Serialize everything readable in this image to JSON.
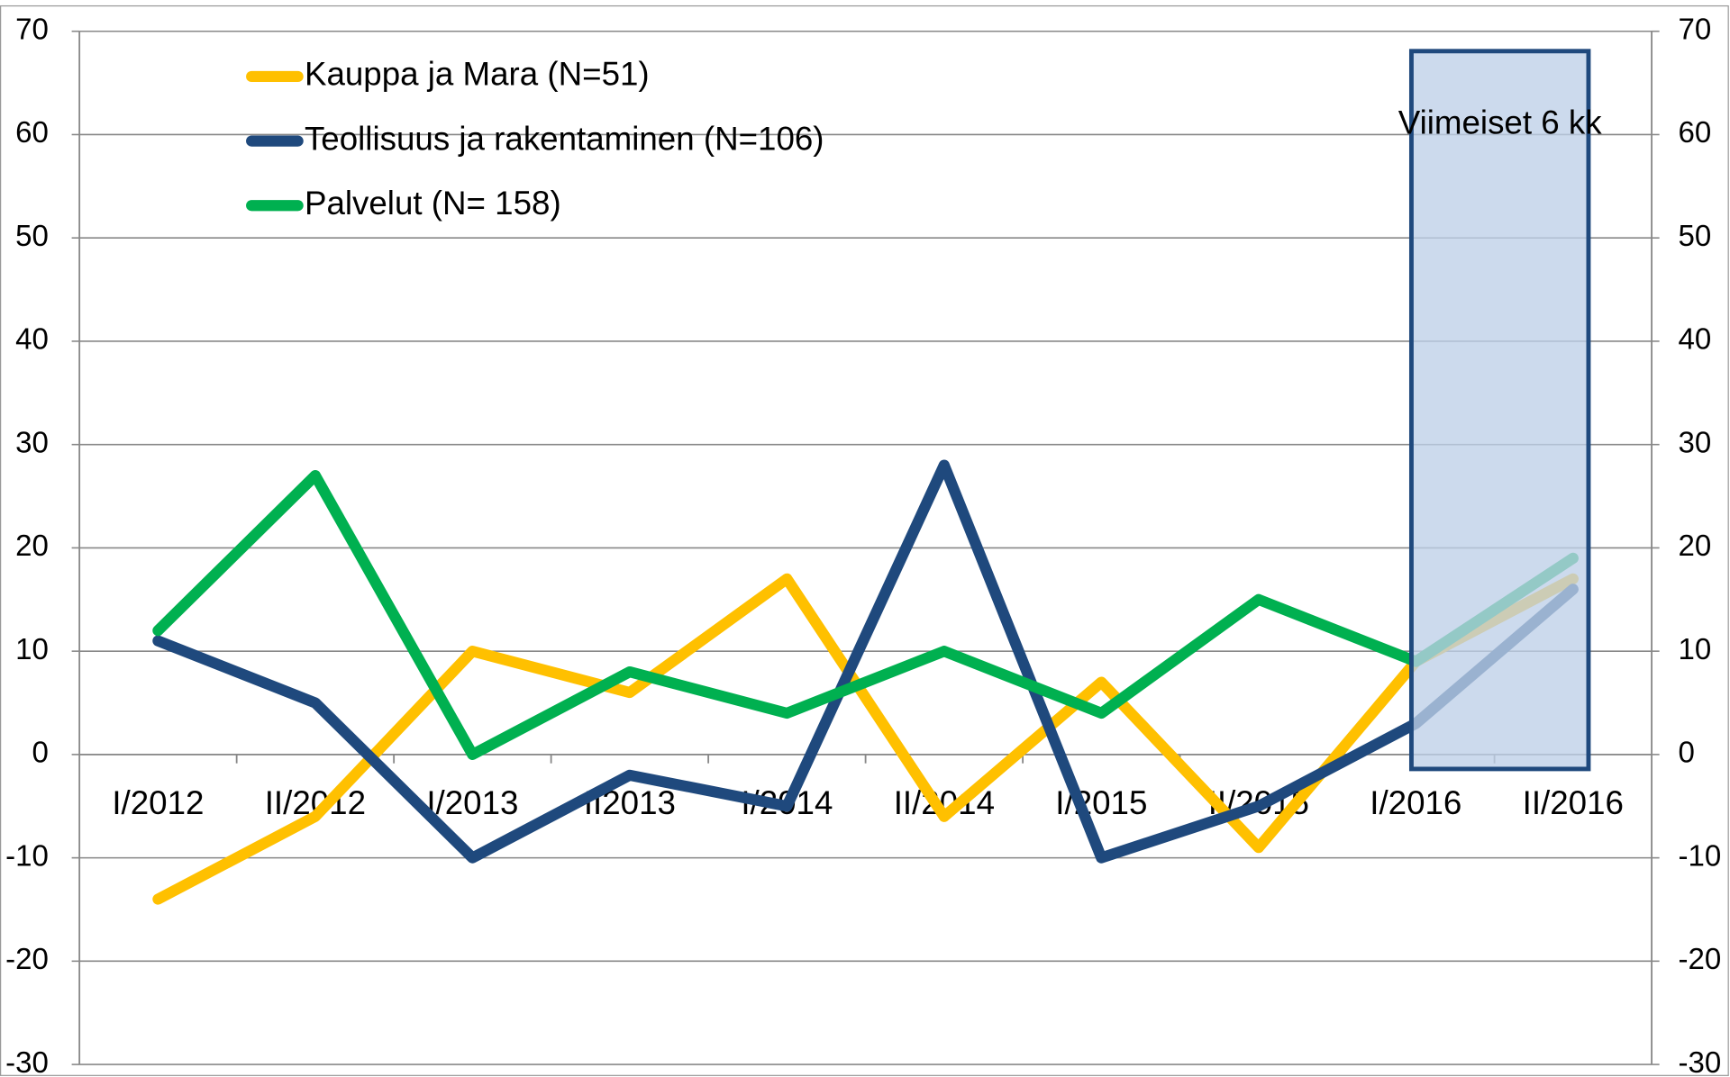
{
  "chart_data": {
    "type": "line",
    "categories": [
      "I/2012",
      "II/2012",
      "I/2013",
      "II2013",
      "I/2014",
      "II/2014",
      "I/2015",
      "II/2015",
      "I/2016",
      "II/2016"
    ],
    "series": [
      {
        "name": "Kauppa ja Mara (N=51)",
        "color": "#FFC000",
        "values": [
          -14,
          -6,
          10,
          6,
          17,
          -6,
          7,
          -9,
          9,
          17
        ]
      },
      {
        "name": "Teollisuus ja rakentaminen (N=106)",
        "color": "#1F497D",
        "values": [
          11,
          5,
          -10,
          -2,
          -5,
          28,
          -10,
          -5,
          3,
          16
        ]
      },
      {
        "name": "Palvelut (N= 158)",
        "color": "#00B050",
        "values": [
          12,
          27,
          0,
          8,
          4,
          10,
          4,
          15,
          9,
          19
        ]
      }
    ],
    "ylim": [
      -30,
      70
    ],
    "yticks": [
      -30,
      -20,
      -10,
      0,
      10,
      20,
      30,
      40,
      50,
      60,
      70
    ],
    "y2lim": [
      -30,
      70
    ],
    "y2ticks": [
      -30,
      -20,
      -10,
      0,
      10,
      20,
      30,
      40,
      50,
      60,
      70
    ],
    "grid": true,
    "legend": "top-left",
    "annotation": "Viimeiset 6 kk"
  }
}
